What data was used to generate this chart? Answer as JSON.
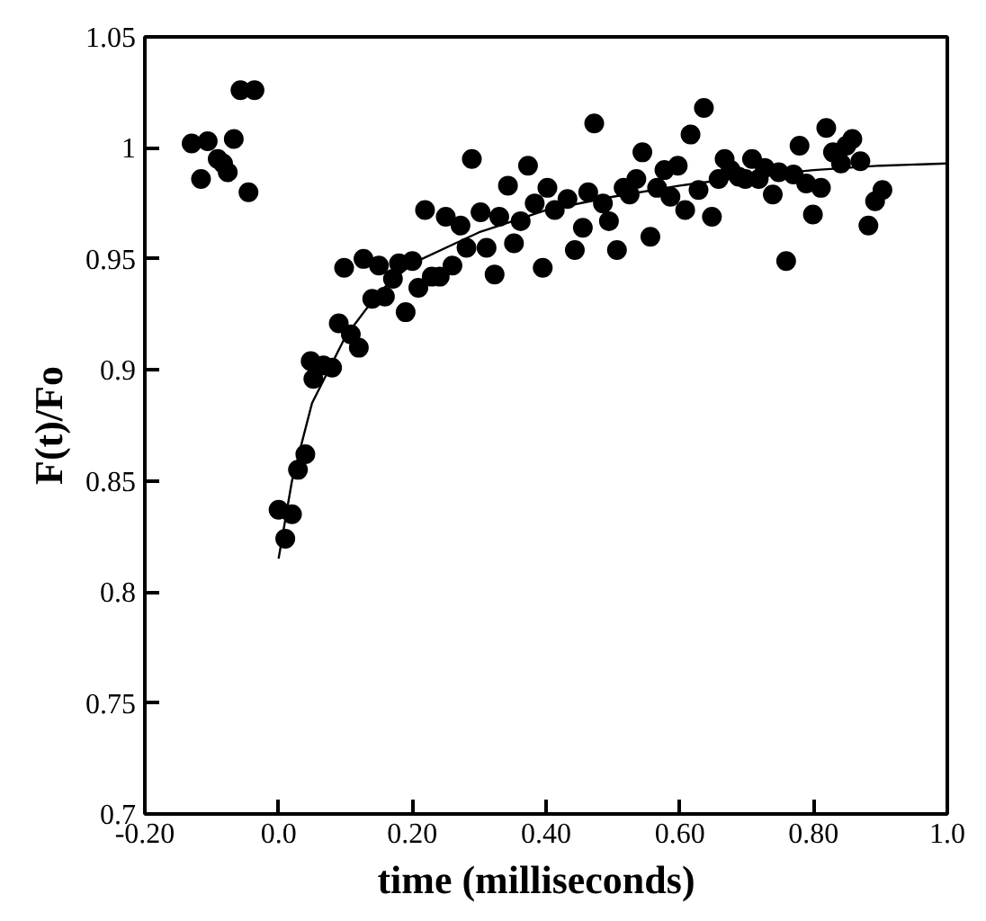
{
  "chart_data": {
    "type": "scatter",
    "xlabel": "time   (milliseconds)",
    "ylabel": "F(t)/Fo",
    "xlim": [
      -0.2,
      1.0
    ],
    "ylim": [
      0.7,
      1.05
    ],
    "xticks": [
      {
        "value": -0.2,
        "label": "-0.20"
      },
      {
        "value": 0,
        "label": "0.0"
      },
      {
        "value": 0.2,
        "label": "0.20"
      },
      {
        "value": 0.4,
        "label": "0.40"
      },
      {
        "value": 0.6,
        "label": "0.60"
      },
      {
        "value": 0.8,
        "label": "0.80"
      },
      {
        "value": 1.0,
        "label": "1.0"
      }
    ],
    "yticks": [
      0.7,
      0.75,
      0.8,
      0.85,
      0.9,
      0.95,
      1,
      1.05
    ],
    "grid": false,
    "marker": "circle",
    "series": [
      {
        "color": "#000000",
        "x": [
          -0.13,
          -0.106,
          -0.116,
          -0.091,
          -0.083,
          -0.076,
          -0.067,
          -0.057,
          -0.036,
          -0.045,
          0.0,
          0.02,
          0.01,
          0.029,
          0.04,
          0.052,
          0.048,
          0.067,
          0.08,
          0.09,
          0.108,
          0.12,
          0.098,
          0.127,
          0.15,
          0.14,
          0.159,
          0.171,
          0.18,
          0.2,
          0.19,
          0.209,
          0.229,
          0.241,
          0.26,
          0.219,
          0.25,
          0.272,
          0.281,
          0.289,
          0.302,
          0.311,
          0.323,
          0.33,
          0.343,
          0.352,
          0.362,
          0.373,
          0.383,
          0.395,
          0.402,
          0.413,
          0.432,
          0.443,
          0.455,
          0.463,
          0.472,
          0.485,
          0.494,
          0.506,
          0.516,
          0.525,
          0.535,
          0.544,
          0.556,
          0.566,
          0.577,
          0.586,
          0.597,
          0.608,
          0.616,
          0.628,
          0.636,
          0.648,
          0.658,
          0.667,
          0.676,
          0.688,
          0.698,
          0.708,
          0.718,
          0.727,
          0.739,
          0.748,
          0.759,
          0.77,
          0.779,
          0.789,
          0.799,
          0.811,
          0.819,
          0.829,
          0.841,
          0.849,
          0.858,
          0.87,
          0.882,
          0.892,
          0.903
        ],
        "values": [
          1.002,
          1.003,
          0.986,
          0.995,
          0.993,
          0.989,
          1.004,
          1.026,
          1.026,
          0.98,
          0.837,
          0.835,
          0.824,
          0.855,
          0.862,
          0.896,
          0.904,
          0.902,
          0.901,
          0.921,
          0.916,
          0.91,
          0.946,
          0.95,
          0.947,
          0.932,
          0.933,
          0.941,
          0.948,
          0.949,
          0.926,
          0.937,
          0.942,
          0.942,
          0.947,
          0.972,
          0.969,
          0.965,
          0.955,
          0.995,
          0.971,
          0.955,
          0.943,
          0.969,
          0.983,
          0.957,
          0.967,
          0.992,
          0.975,
          0.946,
          0.982,
          0.972,
          0.977,
          0.954,
          0.964,
          0.98,
          1.011,
          0.975,
          0.967,
          0.954,
          0.982,
          0.979,
          0.986,
          0.998,
          0.96,
          0.982,
          0.99,
          0.978,
          0.992,
          0.972,
          1.006,
          0.981,
          1.018,
          0.969,
          0.986,
          0.995,
          0.99,
          0.987,
          0.986,
          0.995,
          0.986,
          0.991,
          0.979,
          0.989,
          0.949,
          0.988,
          1.001,
          0.984,
          0.97,
          0.982,
          1.009,
          0.998,
          0.993,
          1.001,
          1.004,
          0.994,
          0.965,
          0.976,
          0.981
        ]
      },
      {
        "type": "line",
        "color": "#000000",
        "marker": "none",
        "line_style": "solid",
        "x": [
          0,
          0.02,
          0.05,
          0.1,
          0.15,
          0.2,
          0.3,
          0.4,
          0.5,
          0.6,
          0.7,
          0.8,
          0.9,
          1.0
        ],
        "values": [
          0.815,
          0.85,
          0.885,
          0.915,
          0.935,
          0.948,
          0.962,
          0.972,
          0.978,
          0.983,
          0.987,
          0.99,
          0.992,
          0.993
        ]
      }
    ]
  }
}
